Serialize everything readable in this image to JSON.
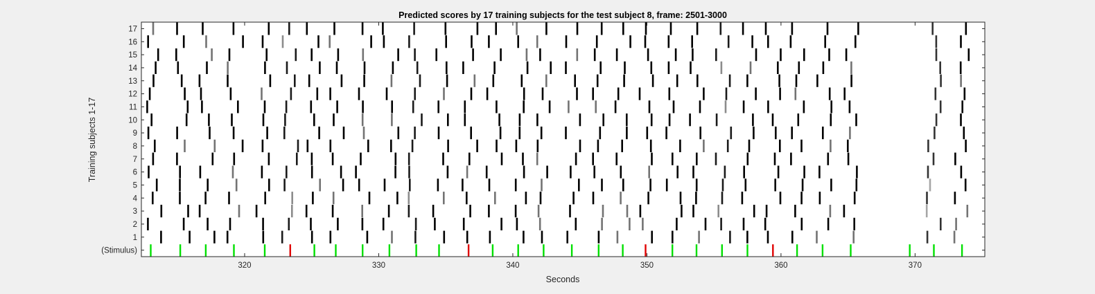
{
  "chart_data": {
    "type": "heatmap",
    "title": "Predicted scores by 17 training subjects for the test subject 8, frame: 2501-3000",
    "xlabel": "Seconds",
    "ylabel": "Training subjects 1-17",
    "xlim": [
      312.3,
      375.2
    ],
    "xticks": [
      320,
      330,
      340,
      350,
      360,
      370
    ],
    "yticklabels": [
      "(Stimulus)",
      "1",
      "2",
      "3",
      "4",
      "5",
      "6",
      "7",
      "8",
      "9",
      "10",
      "11",
      "12",
      "13",
      "14",
      "15",
      "16",
      "17"
    ],
    "background": "#ffffff",
    "stimulus": [
      {
        "t": 313.0,
        "color": "#00e000"
      },
      {
        "t": 315.2,
        "color": "#00e000"
      },
      {
        "t": 317.1,
        "color": "#00e000"
      },
      {
        "t": 319.2,
        "color": "#00e000"
      },
      {
        "t": 321.5,
        "color": "#00e000"
      },
      {
        "t": 323.4,
        "color": "#e00000"
      },
      {
        "t": 325.2,
        "color": "#00e000"
      },
      {
        "t": 326.8,
        "color": "#00e000"
      },
      {
        "t": 328.8,
        "color": "#00e000"
      },
      {
        "t": 330.8,
        "color": "#00e000"
      },
      {
        "t": 332.8,
        "color": "#00e000"
      },
      {
        "t": 334.5,
        "color": "#00e000"
      },
      {
        "t": 336.7,
        "color": "#e00000"
      },
      {
        "t": 338.5,
        "color": "#00e000"
      },
      {
        "t": 340.4,
        "color": "#00e000"
      },
      {
        "t": 342.3,
        "color": "#00e000"
      },
      {
        "t": 344.4,
        "color": "#00e000"
      },
      {
        "t": 346.4,
        "color": "#00e000"
      },
      {
        "t": 348.2,
        "color": "#00e000"
      },
      {
        "t": 349.9,
        "color": "#e00000"
      },
      {
        "t": 351.9,
        "color": "#00e000"
      },
      {
        "t": 353.7,
        "color": "#00e000"
      },
      {
        "t": 355.6,
        "color": "#00e000"
      },
      {
        "t": 357.5,
        "color": "#00e000"
      },
      {
        "t": 359.4,
        "color": "#e00000"
      },
      {
        "t": 361.2,
        "color": "#00e000"
      },
      {
        "t": 363.1,
        "color": "#00e000"
      },
      {
        "t": 365.2,
        "color": "#00e000"
      },
      {
        "t": 369.6,
        "color": "#00e000"
      },
      {
        "t": 371.4,
        "color": "#00e000"
      },
      {
        "t": 373.5,
        "color": "#00e000"
      }
    ],
    "predictions": [
      {
        "t": 313.3,
        "shade": 0.0
      },
      {
        "t": 315.3,
        "shade": 0.0
      },
      {
        "t": 317.2,
        "shade": 0.0
      },
      {
        "t": 319.3,
        "shade": 0.0
      },
      {
        "t": 321.4,
        "shade": 0.0
      },
      {
        "t": 323.4,
        "shade": 0.1
      },
      {
        "t": 325.2,
        "shade": 0.0
      },
      {
        "t": 326.9,
        "shade": 0.0
      },
      {
        "t": 328.9,
        "shade": 0.0
      },
      {
        "t": 330.9,
        "shade": 0.0
      },
      {
        "t": 332.8,
        "shade": 0.1
      },
      {
        "t": 334.6,
        "shade": 0.0
      },
      {
        "t": 336.8,
        "shade": 0.0
      },
      {
        "t": 338.6,
        "shade": 0.0
      },
      {
        "t": 340.5,
        "shade": 0.0
      },
      {
        "t": 342.4,
        "shade": 0.0
      },
      {
        "t": 344.5,
        "shade": 0.0
      },
      {
        "t": 346.5,
        "shade": 0.0
      },
      {
        "t": 348.2,
        "shade": 0.0
      },
      {
        "t": 350.0,
        "shade": 0.0
      },
      {
        "t": 352.0,
        "shade": 0.0
      },
      {
        "t": 353.8,
        "shade": 0.0
      },
      {
        "t": 355.7,
        "shade": 0.1
      },
      {
        "t": 357.6,
        "shade": 0.0
      },
      {
        "t": 359.4,
        "shade": 0.0
      },
      {
        "t": 361.3,
        "shade": 0.0
      },
      {
        "t": 363.2,
        "shade": 0.0
      },
      {
        "t": 365.2,
        "shade": 0.0
      },
      {
        "t": 371.4,
        "shade": 0.2
      },
      {
        "t": 373.5,
        "shade": 0.0
      }
    ]
  }
}
